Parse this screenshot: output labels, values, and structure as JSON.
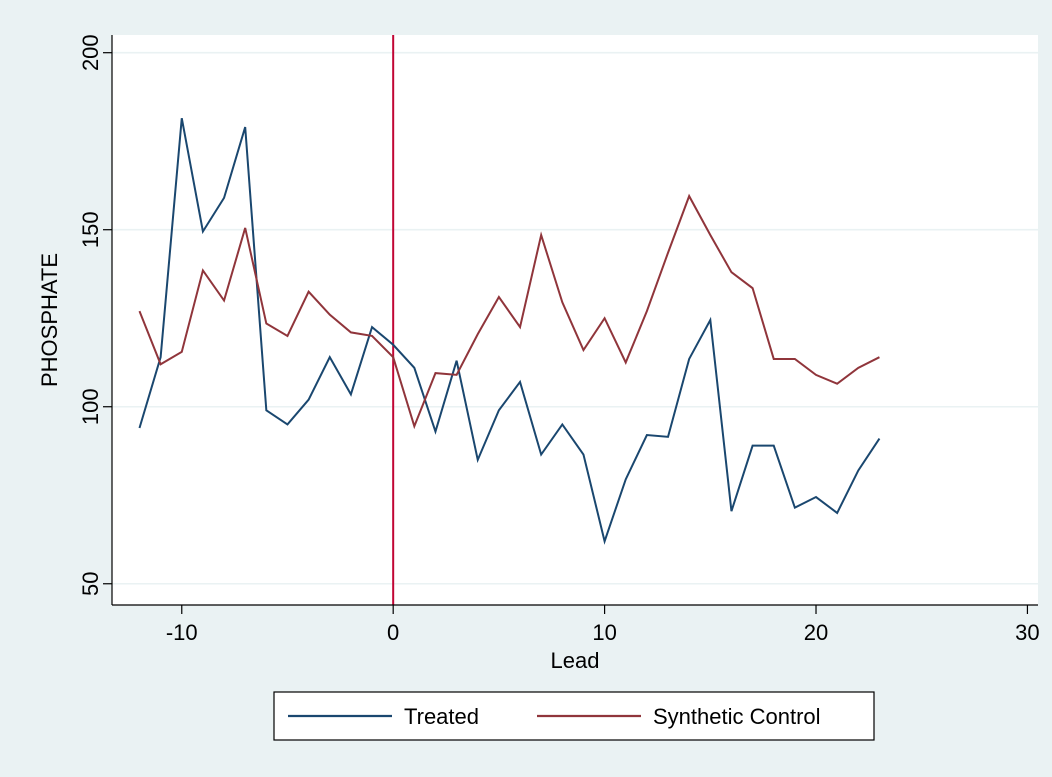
{
  "colors": {
    "background": "#eaf2f3",
    "plot_background": "#ffffff",
    "gridline": "#eaf2f3",
    "treated": "#1a476f",
    "synthetic": "#90353b",
    "vline": "#c10534"
  },
  "chart_data": {
    "type": "line",
    "xlabel": "Lead",
    "ylabel": "PHOSPHATE",
    "xlim": [
      -13.3,
      30.5
    ],
    "ylim": [
      44,
      205
    ],
    "xticks": [
      -10,
      0,
      10,
      20,
      30
    ],
    "xtick_labels": [
      "-10",
      "0",
      "10",
      "20",
      "30"
    ],
    "yticks": [
      50,
      100,
      150,
      200
    ],
    "ytick_labels": [
      "50",
      "100",
      "150",
      "200"
    ],
    "grid": true,
    "vertical_line": 0,
    "legend_position": "bottom",
    "x": [
      -12,
      -11,
      -10,
      -9,
      -8,
      -7,
      -6,
      -5,
      -4,
      -3,
      -2,
      -1,
      0,
      1,
      2,
      3,
      4,
      5,
      6,
      7,
      8,
      9,
      10,
      11,
      12,
      13,
      14,
      15,
      16,
      17,
      18,
      19,
      20,
      21,
      22,
      23
    ],
    "series": [
      {
        "name": "Treated",
        "color": "#1a476f",
        "values": [
          94,
          114,
          181.5,
          149.5,
          159,
          179,
          99,
          95,
          102,
          114,
          103.5,
          122.5,
          117.5,
          111,
          93,
          113,
          85,
          99,
          107,
          86.5,
          95,
          86.5,
          62,
          79.5,
          92,
          91.5,
          113.5,
          124.5,
          70.5,
          89,
          89,
          71.5,
          74.5,
          70,
          82,
          91
        ]
      },
      {
        "name": "Synthetic Control",
        "color": "#90353b",
        "values": [
          127,
          112,
          115.5,
          138.5,
          130,
          150.5,
          123.5,
          120,
          132.5,
          126,
          121,
          120,
          114,
          94.5,
          109.5,
          109,
          120.5,
          131,
          122.5,
          148.5,
          129.5,
          116,
          125,
          112.5,
          127,
          143.5,
          159.5,
          148.5,
          138,
          133.5,
          113.5,
          113.5,
          109,
          106.5,
          111,
          114
        ]
      }
    ]
  }
}
